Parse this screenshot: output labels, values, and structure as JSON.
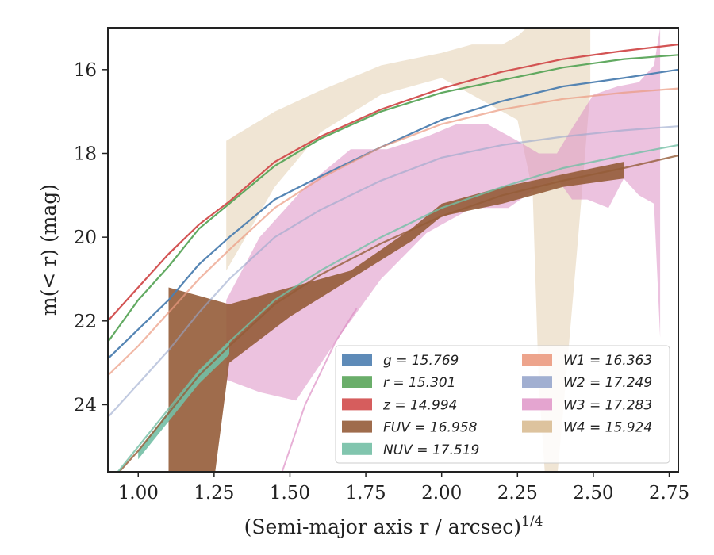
{
  "chart_data": {
    "type": "area",
    "xlabel": "(Semi-major axis r / arcsec)",
    "xlabel_exponent": "1/4",
    "ylabel": "m(< r) (mag)",
    "xlim": [
      0.9,
      2.78
    ],
    "ylim": [
      25.6,
      15.0
    ],
    "y_inverted": true,
    "grid": false,
    "legend_position": "lower-right",
    "x_ticks": [
      "1.00",
      "1.25",
      "1.50",
      "1.75",
      "2.00",
      "2.25",
      "2.50",
      "2.75"
    ],
    "x_tick_values": [
      1.0,
      1.25,
      1.5,
      1.75,
      2.0,
      2.25,
      2.5,
      2.75
    ],
    "y_ticks": [
      "16",
      "18",
      "20",
      "22",
      "24"
    ],
    "y_tick_values": [
      16,
      18,
      20,
      22,
      24
    ],
    "series": [
      {
        "name": "g",
        "label": "g = 15.769",
        "color": "#4c7eb0",
        "mtot": 15.769,
        "a": 0.235,
        "x": [
          0.9,
          1.0,
          1.1,
          1.2,
          1.3,
          1.45,
          1.6,
          1.8,
          2.0,
          2.2,
          2.4,
          2.6,
          2.78
        ],
        "y": [
          22.9,
          22.2,
          21.5,
          20.65,
          20.0,
          19.1,
          18.55,
          17.85,
          17.2,
          16.75,
          16.4,
          16.2,
          16.0
        ]
      },
      {
        "name": "r",
        "label": "r = 15.301",
        "color": "#5aa55a",
        "mtot": 15.301,
        "a": 0.24,
        "x": [
          0.9,
          1.0,
          1.1,
          1.2,
          1.3,
          1.45,
          1.6,
          1.8,
          2.0,
          2.2,
          2.4,
          2.6,
          2.78
        ],
        "y": [
          22.5,
          21.5,
          20.7,
          19.8,
          19.2,
          18.3,
          17.65,
          17.0,
          16.55,
          16.25,
          15.95,
          15.75,
          15.65
        ]
      },
      {
        "name": "z",
        "label": "z = 14.994",
        "color": "#d14b4b",
        "mtot": 14.994,
        "a": 0.245,
        "x": [
          0.9,
          1.0,
          1.1,
          1.2,
          1.3,
          1.45,
          1.6,
          1.8,
          2.0,
          2.2,
          2.4,
          2.6,
          2.78
        ],
        "y": [
          22.0,
          21.2,
          20.4,
          19.7,
          19.15,
          18.2,
          17.6,
          16.95,
          16.45,
          16.05,
          15.75,
          15.55,
          15.4
        ]
      },
      {
        "name": "FUV",
        "label": "FUV = 16.958",
        "color": "#955c38",
        "mtot": 16.958,
        "a": 0.2,
        "x": [
          0.9,
          1.0,
          1.1,
          1.2,
          1.3,
          1.45,
          1.6,
          1.8,
          2.0,
          2.2,
          2.4,
          2.6,
          2.78
        ],
        "y": [
          25.9,
          25.1,
          24.2,
          23.3,
          22.6,
          21.6,
          20.9,
          20.15,
          19.5,
          19.0,
          18.65,
          18.35,
          18.05
        ]
      },
      {
        "name": "NUV",
        "label": "NUV = 17.519",
        "color": "#73bfa5",
        "mtot": 17.519,
        "a": 0.2,
        "x": [
          0.9,
          1.0,
          1.1,
          1.2,
          1.3,
          1.45,
          1.6,
          1.8,
          2.0,
          2.2,
          2.4,
          2.6,
          2.78
        ],
        "y": [
          25.9,
          25.0,
          24.1,
          23.2,
          22.5,
          21.5,
          20.8,
          20.0,
          19.3,
          18.8,
          18.35,
          18.05,
          17.8
        ]
      },
      {
        "name": "W1",
        "label": "W1 = 16.363",
        "color": "#eb9a80",
        "mtot": 16.363,
        "a": 0.22,
        "x": [
          0.9,
          1.0,
          1.1,
          1.2,
          1.3,
          1.45,
          1.6,
          1.8,
          2.0,
          2.2,
          2.4,
          2.6,
          2.78
        ],
        "y": [
          23.3,
          22.6,
          21.8,
          21.0,
          20.3,
          19.3,
          18.6,
          17.85,
          17.3,
          16.95,
          16.7,
          16.55,
          16.45
        ]
      },
      {
        "name": "W2",
        "label": "W2 = 17.249",
        "color": "#97a6cc",
        "mtot": 17.249,
        "a": 0.22,
        "x": [
          0.9,
          1.0,
          1.1,
          1.2,
          1.3,
          1.45,
          1.6,
          1.8,
          2.0,
          2.2,
          2.4,
          2.6,
          2.78
        ],
        "y": [
          24.3,
          23.5,
          22.7,
          21.8,
          21.0,
          20.0,
          19.35,
          18.65,
          18.1,
          17.8,
          17.6,
          17.45,
          17.35
        ]
      },
      {
        "name": "W3",
        "label": "W3 = 17.283",
        "color": "#dd8fc4",
        "mtot": 17.283,
        "a": 0.55,
        "upper_x": [
          1.29,
          1.4,
          1.55,
          1.7,
          1.82,
          1.95,
          2.05,
          2.15,
          2.25,
          2.32,
          2.38,
          2.43,
          2.5,
          2.58,
          2.65,
          2.7,
          2.72
        ],
        "upper_y": [
          21.5,
          20.0,
          18.8,
          17.9,
          17.9,
          17.6,
          17.3,
          17.3,
          17.7,
          18.0,
          18.0,
          17.4,
          16.6,
          16.4,
          16.3,
          15.9,
          15.0
        ],
        "lower_x": [
          2.72,
          2.7,
          2.65,
          2.6,
          2.55,
          2.48,
          2.43,
          2.38,
          2.3,
          2.22,
          2.1,
          1.95,
          1.8,
          1.65,
          1.52,
          1.4,
          1.29
        ],
        "lower_y": [
          22.4,
          19.2,
          19.0,
          18.6,
          19.3,
          19.1,
          19.1,
          18.6,
          18.9,
          19.3,
          19.3,
          19.9,
          21.0,
          22.5,
          23.9,
          23.7,
          23.4
        ]
      },
      {
        "name": "W4",
        "label": "W4 = 15.924",
        "color": "#d9bd93",
        "mtot": 15.924,
        "a": 0.4,
        "upper_x": [
          1.29,
          1.45,
          1.6,
          1.8,
          2.0,
          2.1,
          2.2,
          2.25,
          2.28,
          2.4,
          2.49
        ],
        "upper_y": [
          17.7,
          17.0,
          16.5,
          15.9,
          15.6,
          15.4,
          15.4,
          15.2,
          15.0,
          15.0,
          15.0
        ],
        "lower_x": [
          2.49,
          2.45,
          2.4,
          2.38,
          2.36,
          2.34,
          2.32,
          2.3,
          2.25,
          2.2,
          2.1,
          2.0,
          1.8,
          1.6,
          1.45,
          1.29
        ],
        "lower_y": [
          16.5,
          20.0,
          24.2,
          25.8,
          25.8,
          25.6,
          23.5,
          18.9,
          17.2,
          17.0,
          16.6,
          16.2,
          16.6,
          17.5,
          18.8,
          20.8
        ]
      }
    ],
    "extra_bands": [
      {
        "series": "FUV",
        "upper_x": [
          1.1,
          1.3,
          1.5,
          1.7,
          1.9,
          2.0,
          2.2,
          2.4,
          2.6
        ],
        "upper_y": [
          21.2,
          21.6,
          21.2,
          20.8,
          19.8,
          19.2,
          18.8,
          18.5,
          18.2
        ],
        "lower_x": [
          2.6,
          2.4,
          2.2,
          2.0,
          1.9,
          1.7,
          1.5,
          1.3,
          1.25,
          1.1
        ],
        "lower_y": [
          18.6,
          18.8,
          19.2,
          19.5,
          20.1,
          21.0,
          21.9,
          23.0,
          25.8,
          25.8
        ]
      },
      {
        "series": "NUV",
        "upper_x": [
          1.0,
          1.2,
          1.3
        ],
        "upper_y": [
          25.1,
          23.2,
          22.5
        ],
        "lower_x": [
          1.3,
          1.2,
          1.0
        ],
        "lower_y": [
          22.8,
          23.5,
          25.3
        ]
      }
    ],
    "legend_columns": [
      [
        "g",
        "r",
        "z",
        "FUV",
        "NUV"
      ],
      [
        "W1",
        "W2",
        "W3",
        "W4"
      ]
    ]
  }
}
